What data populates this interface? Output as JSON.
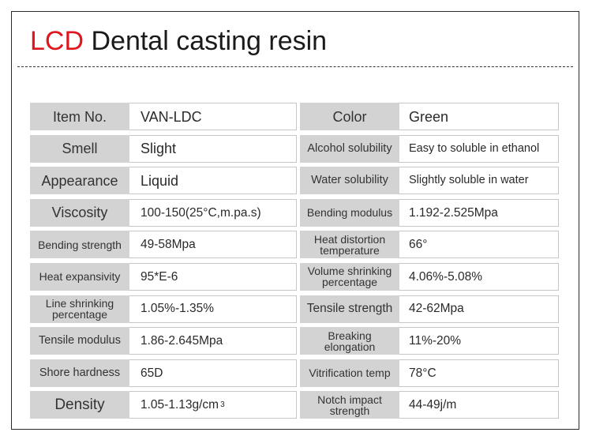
{
  "title": {
    "accent": "LCD",
    "rest": " Dental casting resin"
  },
  "rows": [
    {
      "label1": "Item No.",
      "value1": "VAN-LDC",
      "label2": "Color",
      "value2": "Green"
    },
    {
      "label1": "Smell",
      "value1": "Slight",
      "label2": "Alcohol solubility",
      "value2": "Easy to soluble in ethanol"
    },
    {
      "label1": "Appearance",
      "value1": "Liquid",
      "label2": "Water solubility",
      "value2": "Slightly soluble in water"
    },
    {
      "label1": "Viscosity",
      "value1": "100-150(25°C,m.pa.s)",
      "label2": "Bending modulus",
      "value2": "1.192-2.525Mpa"
    },
    {
      "label1": "Bending strength",
      "value1": "49-58Mpa",
      "label2": "Heat distortion temperature",
      "value2": "66°"
    },
    {
      "label1": "Heat expansivity",
      "value1": "95*E-6",
      "label2": "Volume shrinking percentage",
      "value2": "4.06%-5.08%"
    },
    {
      "label1": "Line shrinking percentage",
      "value1": "1.05%-1.35%",
      "label2": "Tensile strength",
      "value2": "42-62Mpa"
    },
    {
      "label1": "Tensile modulus",
      "value1": "1.86-2.645Mpa",
      "label2": "Breaking elongation",
      "value2": "11%-20%"
    },
    {
      "label1": "Shore hardness",
      "value1": "65D",
      "label2": "Vitrification temp",
      "value2": "78°C"
    },
    {
      "label1": "Density",
      "value1": "1.05-1.13g/cm",
      "value1_sup": "3",
      "label2": "Notch impact strength",
      "value2": "44-49j/m"
    }
  ]
}
